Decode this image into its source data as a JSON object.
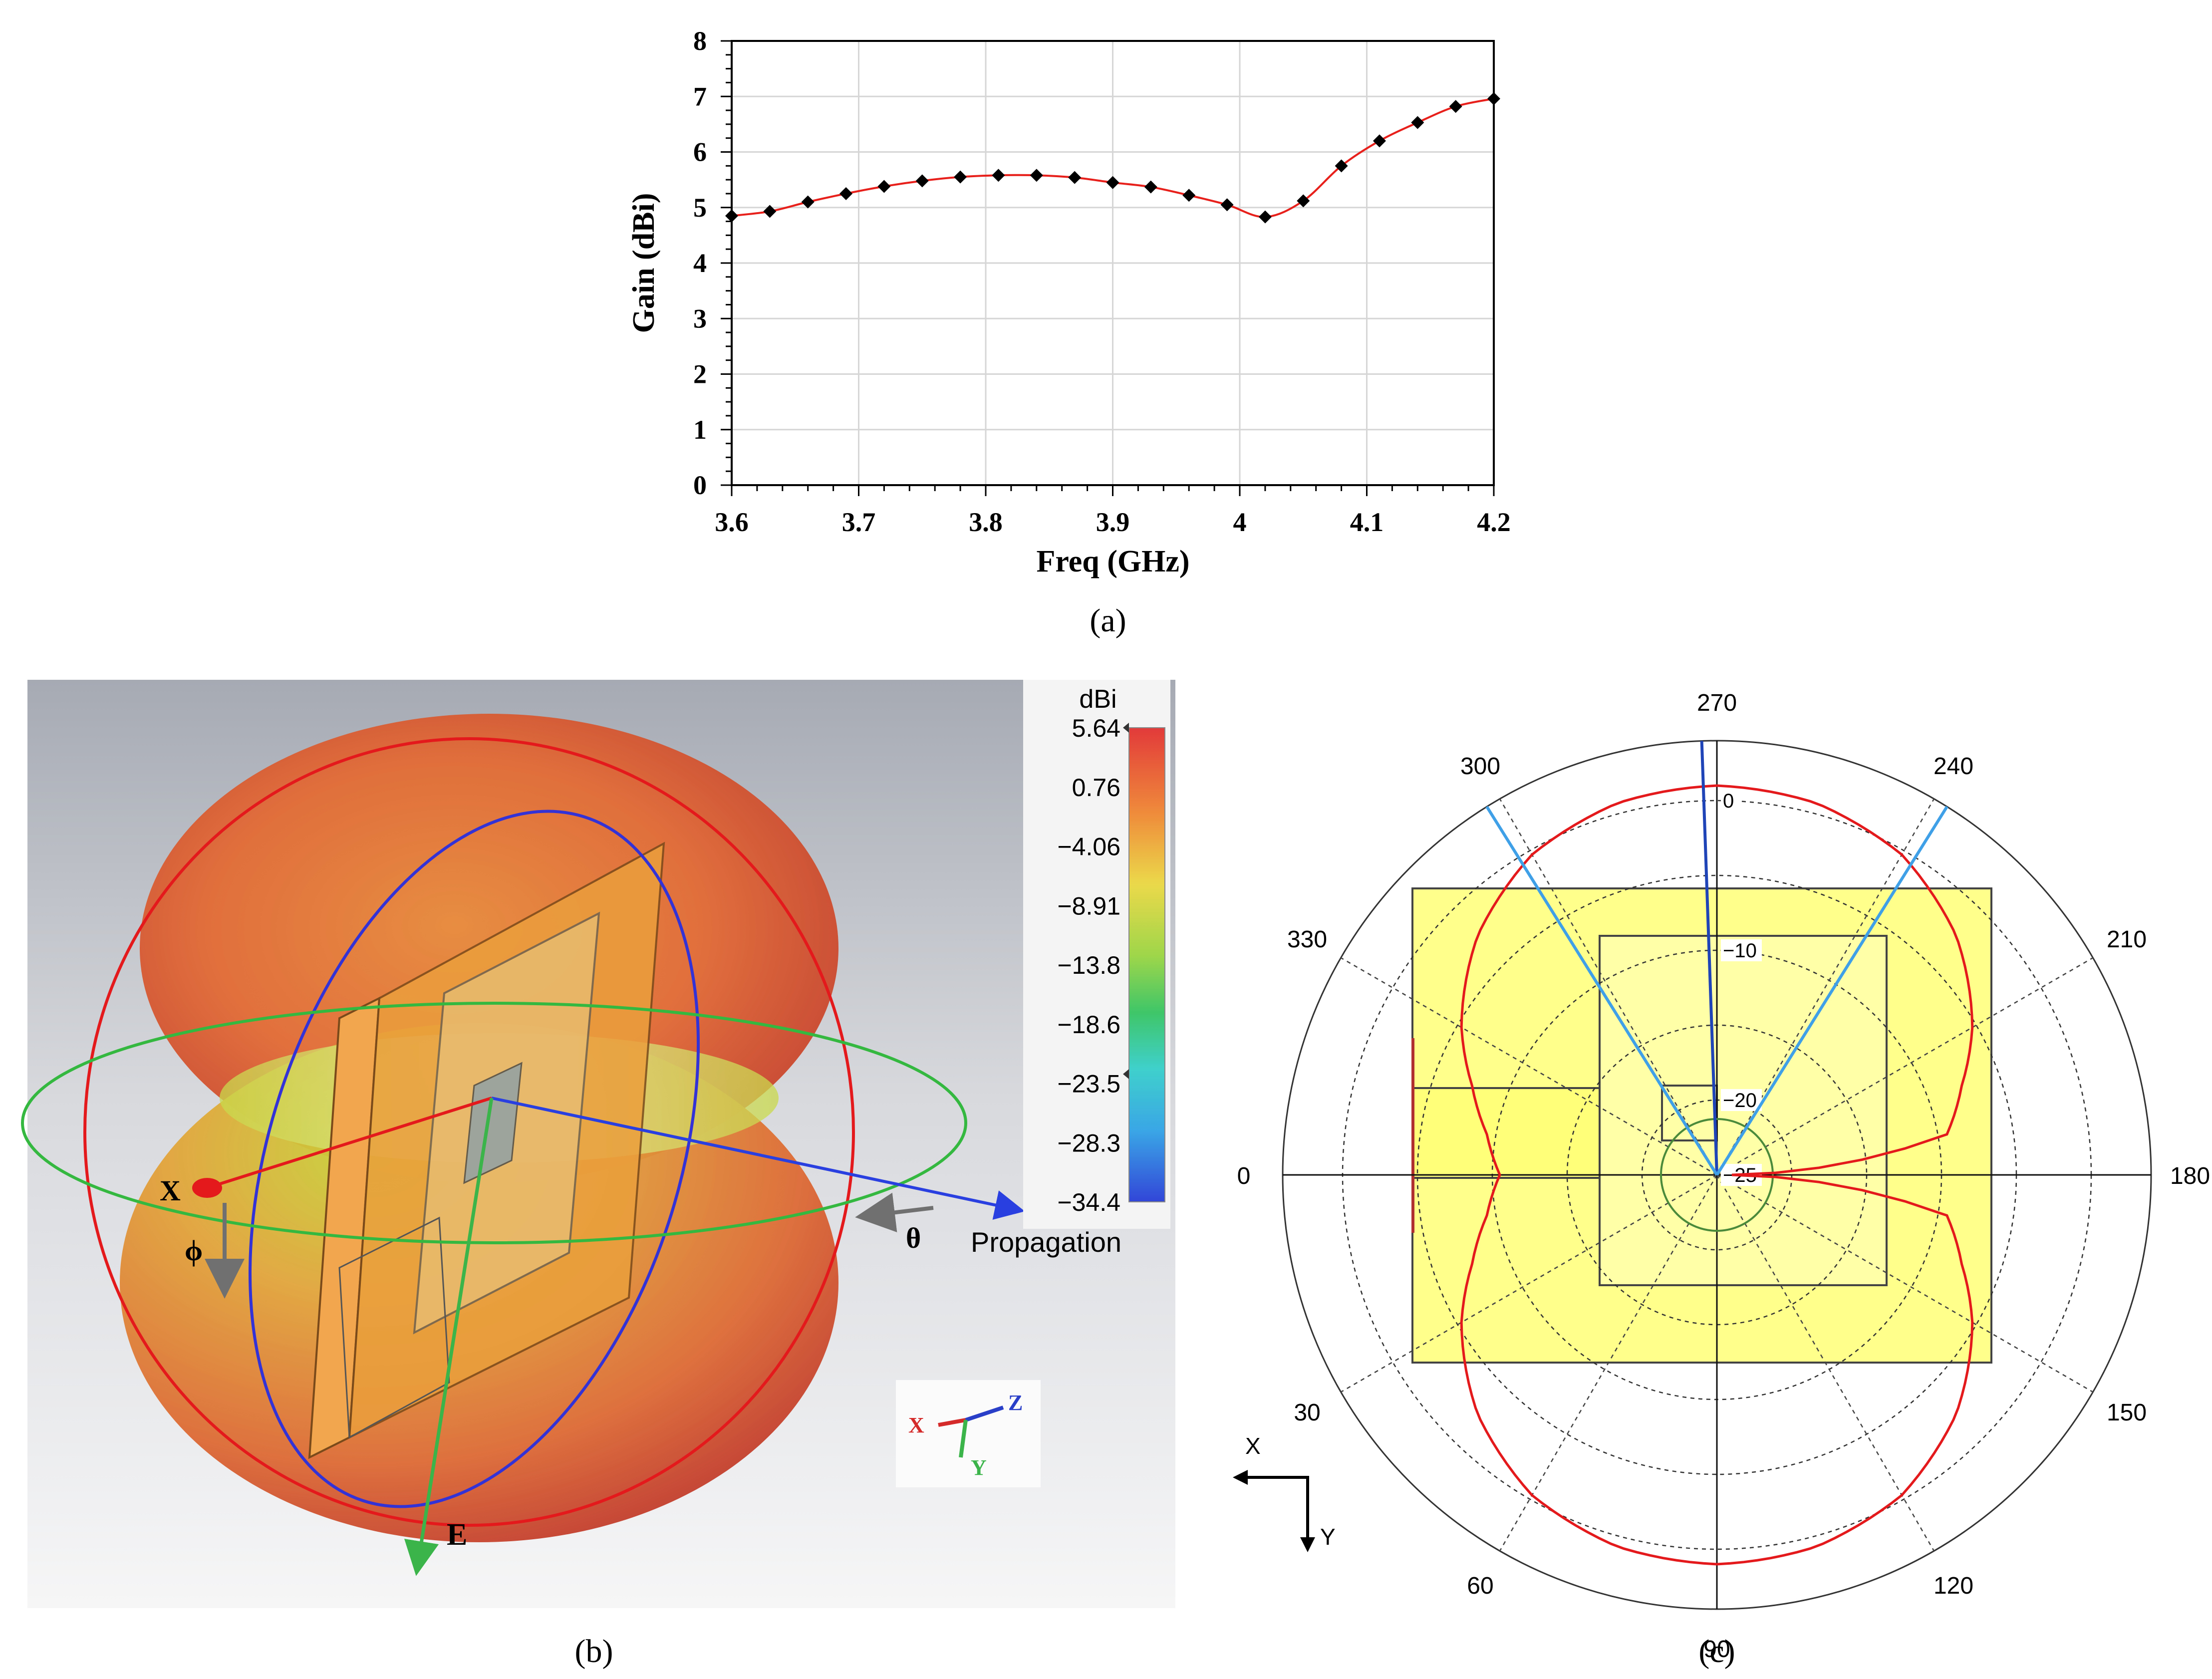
{
  "chart_data": [
    {
      "panel": "(a)",
      "type": "line",
      "xlabel": "Freq (GHz)",
      "ylabel": "Gain (dBi)",
      "xlim": [
        3.6,
        4.2
      ],
      "ylim": [
        0,
        8
      ],
      "xticks": [
        "3.6",
        "3.7",
        "3.8",
        "3.9",
        "4",
        "4.1",
        "4.2"
      ],
      "yticks": [
        "0",
        "1",
        "2",
        "3",
        "4",
        "5",
        "6",
        "7",
        "8"
      ],
      "grid": true,
      "series": [
        {
          "name": "Gain",
          "color": "#e8201c",
          "marker_color": "#000000",
          "x": [
            3.6,
            3.63,
            3.66,
            3.69,
            3.72,
            3.75,
            3.78,
            3.81,
            3.84,
            3.87,
            3.9,
            3.93,
            3.96,
            3.99,
            4.02,
            4.05,
            4.08,
            4.11,
            4.14,
            4.17,
            4.2
          ],
          "y": [
            4.85,
            4.93,
            5.1,
            5.25,
            5.38,
            5.48,
            5.55,
            5.58,
            5.58,
            5.54,
            5.45,
            5.37,
            5.22,
            5.05,
            4.83,
            5.12,
            5.75,
            6.2,
            6.53,
            6.82,
            6.96
          ]
        }
      ]
    },
    {
      "panel": "(b)",
      "type": "3d-radiation-pattern",
      "colorbar_unit": "dBi",
      "colorbar_ticks": [
        "5.64",
        "0.76",
        "−4.06",
        "−8.91",
        "−13.8",
        "−18.6",
        "−23.5",
        "−28.3",
        "−34.4"
      ],
      "labels": {
        "x": "X",
        "phi": "ϕ",
        "theta": "θ",
        "propagation": "Propagation",
        "e": "E"
      },
      "triad": {
        "x": "X",
        "y": "Y",
        "z": "Z"
      }
    },
    {
      "panel": "(c)",
      "type": "polar",
      "angle_labels": [
        {
          "deg": 270,
          "label": "270"
        },
        {
          "deg": 240,
          "label": "240"
        },
        {
          "deg": 210,
          "label": "210"
        },
        {
          "deg": 180,
          "label": "180"
        },
        {
          "deg": 150,
          "label": "150"
        },
        {
          "deg": 120,
          "label": "120"
        },
        {
          "deg": 90,
          "label": "90"
        },
        {
          "deg": 60,
          "label": "60"
        },
        {
          "deg": 30,
          "label": "30"
        },
        {
          "deg": 0,
          "label": "0"
        },
        {
          "deg": 330,
          "label": "330"
        },
        {
          "deg": 300,
          "label": "300"
        }
      ],
      "radial_labels": [
        {
          "db": 0,
          "label": "0"
        },
        {
          "db": -10,
          "label": "−10"
        },
        {
          "db": -20,
          "label": "−20"
        },
        {
          "db": -25,
          "label": "−25"
        }
      ],
      "radial_range_db": [
        -25,
        4
      ],
      "pattern": {
        "color": "#e3191c",
        "deg": [
          0,
          10,
          20,
          30,
          45,
          60,
          75,
          90,
          105,
          120,
          135,
          150,
          160,
          170,
          180,
          190,
          200,
          210,
          225,
          240,
          255,
          270,
          285,
          300,
          315,
          330,
          340,
          350
        ],
        "db": [
          -10.5,
          -9.4,
          -7.6,
          -5.3,
          -2.4,
          -0.3,
          0.7,
          1.0,
          0.7,
          -0.3,
          -2.4,
          -5.3,
          -7.6,
          -9.4,
          -24.0,
          -9.4,
          -7.6,
          -5.3,
          -2.4,
          -0.3,
          0.7,
          1.0,
          0.7,
          -0.3,
          -2.4,
          -5.3,
          -7.6,
          -9.4
        ]
      },
      "beam_lines": [
        {
          "color": "#1f44b8",
          "deg": 272
        },
        {
          "color": "#3fa0e8",
          "deg": 238
        },
        {
          "color": "#3fa0e8",
          "deg": 302
        }
      ],
      "axis_arrows": {
        "x": "X",
        "y": "Y"
      }
    }
  ],
  "captions": {
    "a": "(a)",
    "b": "(b)",
    "c": "(c)"
  }
}
